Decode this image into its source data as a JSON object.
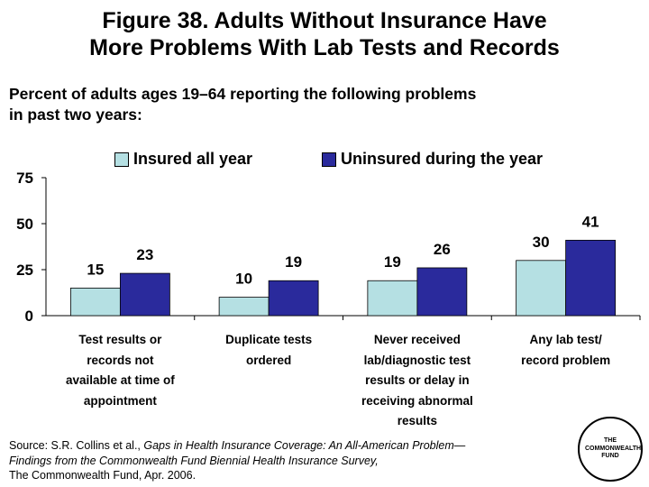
{
  "title_line1": "Figure 38. Adults Without Insurance Have",
  "title_line2": "More Problems With Lab Tests and Records",
  "subtitle_line1": "Percent of adults ages 19–64 reporting the following problems",
  "subtitle_line2": "in past two years:",
  "colors": {
    "insured": "#b5e0e3",
    "uninsured": "#2a2a9c"
  },
  "chart_data": {
    "type": "bar",
    "categories": [
      [
        "Test results or",
        "records not",
        "available at time of",
        "appointment"
      ],
      [
        "Duplicate tests",
        "ordered"
      ],
      [
        "Never received",
        "lab/diagnostic test",
        "results or delay in",
        "receiving abnormal",
        "results"
      ],
      [
        "Any lab test/",
        "record problem"
      ]
    ],
    "series": [
      {
        "name": "Insured all year",
        "values": [
          15,
          10,
          19,
          30
        ]
      },
      {
        "name": "Uninsured during the year",
        "values": [
          23,
          19,
          26,
          41
        ]
      }
    ],
    "ylim": [
      0,
      75
    ],
    "yticks": [
      "0",
      "25",
      "50",
      "75"
    ],
    "grid": false,
    "legend": "top"
  },
  "source": {
    "prefix": "Source: S.R. Collins et al., ",
    "italic_line1": "Gaps in Health Insurance Coverage: An All-American Problem—",
    "italic_line2": "Findings from the Commonwealth Fund Biennial Health Insurance Survey,",
    "line3": "The Commonwealth Fund, Apr. 2006."
  },
  "logo_text": "THE\nCOMMONWEALTH\nFUND"
}
